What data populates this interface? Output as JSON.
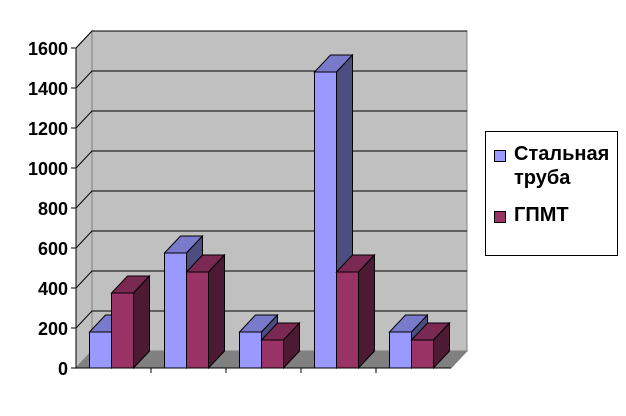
{
  "chart_data": {
    "type": "bar",
    "title": "",
    "xlabel": "",
    "ylabel": "",
    "categories": [
      "",
      "",
      "",
      "",
      ""
    ],
    "series": [
      {
        "name": "Стальная труба",
        "color": "#9999ff",
        "values": [
          180,
          575,
          180,
          1480,
          180
        ]
      },
      {
        "name": "ГПМТ",
        "color": "#993366",
        "values": [
          375,
          480,
          140,
          480,
          140
        ]
      }
    ],
    "ylim": [
      0,
      1600
    ],
    "yticks": [
      "0",
      "200",
      "400",
      "600",
      "800",
      "1000",
      "1200",
      "1400",
      "1600"
    ],
    "grid": true,
    "legend_position": "right",
    "plot_background": "#c0c0c0"
  }
}
